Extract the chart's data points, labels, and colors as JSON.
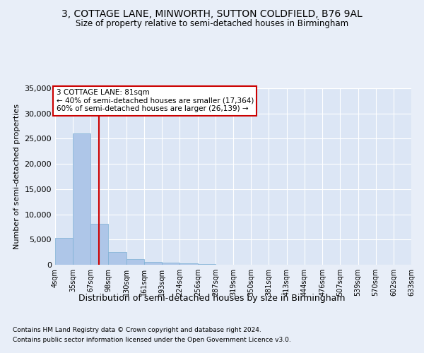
{
  "title": "3, COTTAGE LANE, MINWORTH, SUTTON COLDFIELD, B76 9AL",
  "subtitle": "Size of property relative to semi-detached houses in Birmingham",
  "xlabel": "Distribution of semi-detached houses by size in Birmingham",
  "ylabel": "Number of semi-detached properties",
  "footnote1": "Contains HM Land Registry data © Crown copyright and database right 2024.",
  "footnote2": "Contains public sector information licensed under the Open Government Licence v3.0.",
  "annotation_title": "3 COTTAGE LANE: 81sqm",
  "annotation_line1": "← 40% of semi-detached houses are smaller (17,364)",
  "annotation_line2": "60% of semi-detached houses are larger (26,139) →",
  "property_size": 81,
  "bar_color": "#aec6e8",
  "bar_edge_color": "#7bafd4",
  "redline_color": "#cc0000",
  "background_color": "#e8eef8",
  "plot_bg_color": "#dce6f5",
  "grid_color": "#ffffff",
  "bin_edges": [
    4,
    35,
    67,
    98,
    130,
    161,
    193,
    224,
    256,
    287,
    319,
    350,
    381,
    413,
    444,
    476,
    507,
    539,
    570,
    602,
    633
  ],
  "bar_values": [
    5300,
    26000,
    8100,
    2500,
    1100,
    600,
    400,
    300,
    200,
    0,
    0,
    0,
    0,
    0,
    0,
    0,
    0,
    0,
    0,
    0
  ],
  "ylim": [
    0,
    35000
  ],
  "yticks": [
    0,
    5000,
    10000,
    15000,
    20000,
    25000,
    30000,
    35000
  ],
  "tick_labels": [
    "4sqm",
    "35sqm",
    "67sqm",
    "98sqm",
    "130sqm",
    "161sqm",
    "193sqm",
    "224sqm",
    "256sqm",
    "287sqm",
    "319sqm",
    "350sqm",
    "381sqm",
    "413sqm",
    "444sqm",
    "476sqm",
    "507sqm",
    "539sqm",
    "570sqm",
    "602sqm",
    "633sqm"
  ]
}
